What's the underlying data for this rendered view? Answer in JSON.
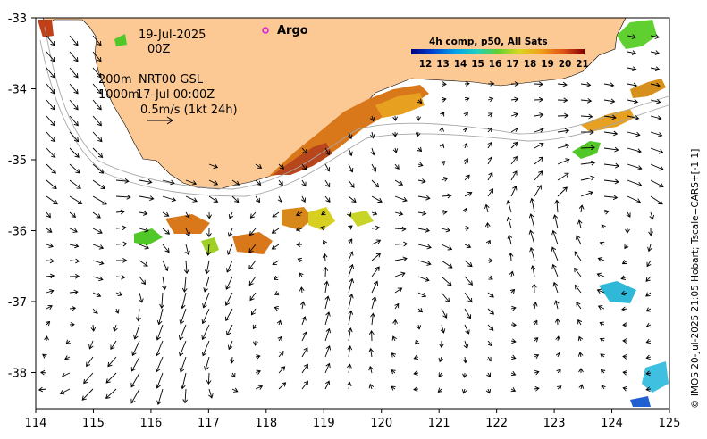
{
  "map": {
    "date": "19-Jul-2025",
    "hour": "00Z",
    "float_label": "Argo",
    "depth_200": "200m",
    "depth_1000": "1000m",
    "current_source": "NRT00 GSL",
    "current_time": "17-Jul 00:00Z",
    "arrow_scale": "0.5m/s (1kt 24h)",
    "colorbar_title": "4h comp, p50, All Sats",
    "colorbar_ticks": [
      "12",
      "13",
      "14",
      "15",
      "16",
      "17",
      "18",
      "19",
      "20",
      "21"
    ],
    "credit": "© IMOS 20-Jul-2025 21:05 Hobart; Tscale=CARS+[-1 1]",
    "lon_ticks": [
      "114",
      "115",
      "116",
      "117",
      "118",
      "119",
      "120",
      "121",
      "122",
      "123",
      "124",
      "125"
    ],
    "lat_ticks": [
      "-33",
      "-34",
      "-35",
      "-36",
      "-37",
      "-38"
    ],
    "colors": {
      "land": "#fcc995",
      "warm": "#d8781a",
      "hot": "#b8461c",
      "mid": "#e8a020",
      "yellow": "#d8d020",
      "green": "#50c828",
      "cyan": "#30b8d8",
      "blue": "#2060d0",
      "argo": "#e020e0"
    }
  }
}
